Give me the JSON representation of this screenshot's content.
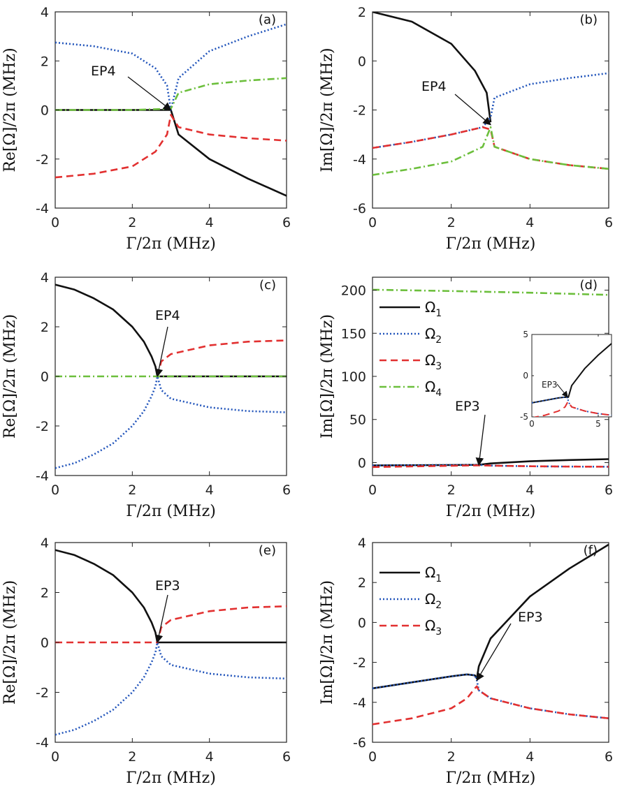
{
  "figure": {
    "xlabel": "Γ/2π (MHz)",
    "ylabel_re": "Re[Ω]/2π (MHz)",
    "ylabel_im": "Im[Ω]/2π (MHz)",
    "legend_labels": [
      "Ω1",
      "Ω2",
      "Ω3",
      "Ω4"
    ]
  },
  "colors": {
    "omega1": "#111111",
    "omega2": "#2255bb",
    "omega3": "#e23030",
    "omega4": "#6cbf3c"
  },
  "chart_data": [
    {
      "panel": "(a)",
      "type": "line",
      "xlabel": "Γ/2π (MHz)",
      "ylabel": "Re[Ω]/2π (MHz)",
      "xlim": [
        0,
        6
      ],
      "ylim": [
        -4,
        4
      ],
      "xticks": [
        0,
        2,
        4,
        6
      ],
      "yticks": [
        4,
        2,
        0,
        -2,
        -4
      ],
      "annotation": {
        "text": "EP4",
        "x": 3.0,
        "y": 0
      },
      "series": [
        {
          "name": "Ω1",
          "style": "solid",
          "color": "#111111",
          "x": [
            0,
            1,
            2,
            2.8,
            3.0,
            3.2,
            4,
            5,
            6
          ],
          "y": [
            0,
            0,
            0,
            0,
            0,
            -1.0,
            -2.0,
            -2.8,
            -3.5
          ]
        },
        {
          "name": "Ω2",
          "style": "dotted",
          "color": "#2255bb",
          "x": [
            0,
            1,
            2,
            2.6,
            2.9,
            3.0,
            3.2,
            4,
            5,
            6
          ],
          "y": [
            2.75,
            2.6,
            2.3,
            1.7,
            1.0,
            0,
            1.3,
            2.4,
            3.0,
            3.5
          ]
        },
        {
          "name": "Ω3",
          "style": "dashed",
          "color": "#e23030",
          "x": [
            0,
            1,
            2,
            2.6,
            2.9,
            3.0,
            3.2,
            4,
            5,
            6
          ],
          "y": [
            -2.75,
            -2.6,
            -2.3,
            -1.7,
            -1.0,
            -0.2,
            -0.7,
            -1.0,
            -1.15,
            -1.25
          ]
        },
        {
          "name": "Ω4",
          "style": "dashdot",
          "color": "#6cbf3c",
          "x": [
            0,
            1,
            2,
            3.0,
            3.2,
            4,
            5,
            6
          ],
          "y": [
            0,
            0,
            0,
            0.05,
            0.7,
            1.05,
            1.2,
            1.3
          ]
        }
      ]
    },
    {
      "panel": "(b)",
      "type": "line",
      "xlabel": "Γ/2π (MHz)",
      "ylabel": "Im[Ω]/2π (MHz)",
      "xlim": [
        0,
        6
      ],
      "ylim": [
        -6,
        2
      ],
      "xticks": [
        0,
        2,
        4,
        6
      ],
      "yticks": [
        2,
        0,
        -2,
        -4,
        -6
      ],
      "annotation": {
        "text": "EP4",
        "x": 3.0,
        "y": -2.6
      },
      "series": [
        {
          "name": "Ω1",
          "style": "solid",
          "color": "#111111",
          "x": [
            0,
            1,
            2,
            2.6,
            2.9,
            3.0
          ],
          "y": [
            2.0,
            1.6,
            0.7,
            -0.4,
            -1.3,
            -2.5
          ]
        },
        {
          "name": "Ω2",
          "style": "dotted",
          "color": "#2255bb",
          "x": [
            0,
            1,
            2,
            2.8,
            3.0,
            3.1,
            4,
            5,
            6
          ],
          "y": [
            -3.55,
            -3.3,
            -3.0,
            -2.7,
            -2.3,
            -1.5,
            -0.95,
            -0.7,
            -0.5
          ]
        },
        {
          "name": "Ω3",
          "style": "dashed",
          "color": "#e23030",
          "x": [
            0,
            1,
            2,
            2.8,
            3.0,
            3.1,
            4,
            5,
            6
          ],
          "y": [
            -3.55,
            -3.3,
            -3.0,
            -2.7,
            -2.8,
            -3.5,
            -4.0,
            -4.25,
            -4.4
          ]
        },
        {
          "name": "Ω4",
          "style": "dashdot",
          "color": "#6cbf3c",
          "x": [
            0,
            1,
            2,
            2.8,
            3.0,
            3.1,
            4,
            5,
            6
          ],
          "y": [
            -4.65,
            -4.4,
            -4.1,
            -3.5,
            -2.7,
            -3.5,
            -4.0,
            -4.25,
            -4.4
          ]
        }
      ]
    },
    {
      "panel": "(c)",
      "type": "line",
      "xlabel": "Γ/2π (MHz)",
      "ylabel": "Re[Ω]/2π (MHz)",
      "xlim": [
        0,
        6
      ],
      "ylim": [
        -4,
        4
      ],
      "xticks": [
        0,
        2,
        4,
        6
      ],
      "yticks": [
        4,
        2,
        0,
        -2,
        -4
      ],
      "annotation": {
        "text": "EP4",
        "x": 2.65,
        "y": 0
      },
      "series": [
        {
          "name": "Ω1",
          "style": "solid",
          "color": "#111111",
          "x": [
            0,
            0.5,
            1,
            1.5,
            2,
            2.3,
            2.5,
            2.6,
            2.65,
            3,
            4,
            5,
            6
          ],
          "y": [
            3.7,
            3.5,
            3.15,
            2.7,
            2.0,
            1.4,
            0.8,
            0.4,
            0,
            0,
            0,
            0,
            0
          ]
        },
        {
          "name": "Ω2",
          "style": "dotted",
          "color": "#2255bb",
          "x": [
            0,
            0.5,
            1,
            1.5,
            2,
            2.3,
            2.5,
            2.6,
            2.65,
            2.75,
            3,
            4,
            5,
            6
          ],
          "y": [
            -3.7,
            -3.5,
            -3.15,
            -2.7,
            -2.0,
            -1.4,
            -0.8,
            -0.4,
            0,
            -0.55,
            -0.9,
            -1.25,
            -1.4,
            -1.45
          ]
        },
        {
          "name": "Ω3",
          "style": "dashed",
          "color": "#e23030",
          "x": [
            2.65,
            2.75,
            3,
            4,
            5,
            6
          ],
          "y": [
            0,
            0.6,
            0.9,
            1.25,
            1.4,
            1.45
          ]
        },
        {
          "name": "Ω4",
          "style": "dashdot",
          "color": "#6cbf3c",
          "x": [
            0,
            6
          ],
          "y": [
            0,
            0
          ]
        }
      ]
    },
    {
      "panel": "(d)",
      "type": "line",
      "xlabel": "Γ/2π (MHz)",
      "ylabel": "Im[Ω]/2π (MHz)",
      "xlim": [
        0,
        6
      ],
      "ylim": [
        -15,
        215
      ],
      "xticks": [
        0,
        2,
        4,
        6
      ],
      "yticks": [
        200,
        150,
        100,
        50,
        0
      ],
      "legend": [
        "Ω1",
        "Ω2",
        "Ω3",
        "Ω4"
      ],
      "annotation": {
        "text": "EP3",
        "x": 2.7,
        "y": -3
      },
      "series": [
        {
          "name": "Ω1",
          "style": "solid",
          "color": "#111111",
          "x": [
            0,
            2.7,
            3,
            4,
            5,
            6
          ],
          "y": [
            -3.3,
            -2.6,
            -1,
            1.5,
            3,
            4
          ]
        },
        {
          "name": "Ω2",
          "style": "dotted",
          "color": "#2255bb",
          "x": [
            0,
            2.7,
            3,
            4,
            5,
            6
          ],
          "y": [
            -3.3,
            -2.6,
            -3.5,
            -4.2,
            -4.6,
            -4.8
          ]
        },
        {
          "name": "Ω3",
          "style": "dashed",
          "color": "#e23030",
          "x": [
            0,
            2.7,
            3,
            4,
            5,
            6
          ],
          "y": [
            -5.1,
            -3.2,
            -3.5,
            -4.2,
            -4.6,
            -4.8
          ]
        },
        {
          "name": "Ω4",
          "style": "dashdot",
          "color": "#6cbf3c",
          "x": [
            0,
            2,
            4,
            6
          ],
          "y": [
            200.5,
            199,
            197,
            194.5
          ]
        }
      ],
      "inset": {
        "xlim": [
          0,
          6
        ],
        "ylim": [
          -5,
          5
        ],
        "xticks": [
          0,
          5
        ],
        "yticks": [
          5,
          0,
          -5
        ],
        "annotation": {
          "text": "EP3",
          "x": 2.7,
          "y": -2.6
        },
        "series": [
          {
            "name": "Ω1",
            "style": "solid",
            "color": "#111111",
            "x": [
              0,
              1,
              2,
              2.5,
              2.7,
              2.75,
              3,
              4,
              5,
              6
            ],
            "y": [
              -3.3,
              -3.0,
              -2.7,
              -2.6,
              -2.65,
              -2.6,
              -1.2,
              0.9,
              2.5,
              3.9
            ]
          },
          {
            "name": "Ω2",
            "style": "dotted",
            "color": "#2255bb",
            "x": [
              0,
              1,
              2,
              2.5,
              2.7,
              2.75,
              3,
              4,
              5,
              6
            ],
            "y": [
              -3.3,
              -3.0,
              -2.7,
              -2.6,
              -2.65,
              -3.2,
              -3.8,
              -4.3,
              -4.6,
              -4.8
            ]
          },
          {
            "name": "Ω3",
            "style": "dashed",
            "color": "#e23030",
            "x": [
              0,
              1,
              2,
              2.5,
              2.7,
              2.75,
              3,
              4,
              5,
              6
            ],
            "y": [
              -5.1,
              -4.8,
              -4.3,
              -3.8,
              -3.2,
              -3.2,
              -3.8,
              -4.3,
              -4.6,
              -4.8
            ]
          }
        ]
      }
    },
    {
      "panel": "(e)",
      "type": "line",
      "xlabel": "Γ/2π (MHz)",
      "ylabel": "Re[Ω]/2π (MHz)",
      "xlim": [
        0,
        6
      ],
      "ylim": [
        -4,
        4
      ],
      "xticks": [
        0,
        2,
        4,
        6
      ],
      "yticks": [
        4,
        2,
        0,
        -2,
        -4
      ],
      "annotation": {
        "text": "EP3",
        "x": 2.65,
        "y": 0
      },
      "series": [
        {
          "name": "Ω1",
          "style": "solid",
          "color": "#111111",
          "x": [
            0,
            0.5,
            1,
            1.5,
            2,
            2.3,
            2.5,
            2.6,
            2.65,
            3,
            4,
            5,
            6
          ],
          "y": [
            3.7,
            3.5,
            3.15,
            2.7,
            2.0,
            1.4,
            0.8,
            0.4,
            0,
            0,
            0,
            0,
            0
          ]
        },
        {
          "name": "Ω2",
          "style": "dotted",
          "color": "#2255bb",
          "x": [
            0,
            0.5,
            1,
            1.5,
            2,
            2.3,
            2.5,
            2.6,
            2.65,
            2.75,
            3,
            4,
            5,
            6
          ],
          "y": [
            -3.7,
            -3.5,
            -3.15,
            -2.7,
            -2.0,
            -1.4,
            -0.8,
            -0.4,
            0,
            -0.55,
            -0.9,
            -1.25,
            -1.4,
            -1.45
          ]
        },
        {
          "name": "Ω3",
          "style": "dashed",
          "color": "#e23030",
          "x": [
            0,
            2.65,
            2.75,
            3,
            4,
            5,
            6
          ],
          "y": [
            0,
            0,
            0.6,
            0.9,
            1.25,
            1.4,
            1.45
          ]
        }
      ]
    },
    {
      "panel": "(f)",
      "type": "line",
      "xlabel": "Γ/2π (MHz)",
      "ylabel": "Im[Ω]/2π (MHz)",
      "xlim": [
        0,
        6
      ],
      "ylim": [
        -6,
        4
      ],
      "xticks": [
        0,
        2,
        4,
        6
      ],
      "yticks": [
        4,
        2,
        0,
        -2,
        -4,
        -6
      ],
      "legend": [
        "Ω1",
        "Ω2",
        "Ω3"
      ],
      "annotation": {
        "text": "EP3",
        "x": 2.65,
        "y": -2.9
      },
      "series": [
        {
          "name": "Ω1",
          "style": "solid",
          "color": "#111111",
          "x": [
            0,
            1,
            2,
            2.4,
            2.6,
            2.65,
            2.7,
            3,
            4,
            5,
            6
          ],
          "y": [
            -3.3,
            -3.0,
            -2.7,
            -2.6,
            -2.65,
            -2.8,
            -2.2,
            -0.8,
            1.3,
            2.7,
            3.9
          ]
        },
        {
          "name": "Ω2",
          "style": "dotted",
          "color": "#2255bb",
          "x": [
            0,
            1,
            2,
            2.4,
            2.6,
            2.65,
            2.7,
            3,
            4,
            5,
            6
          ],
          "y": [
            -3.3,
            -3.0,
            -2.7,
            -2.6,
            -2.65,
            -2.9,
            -3.4,
            -3.8,
            -4.3,
            -4.6,
            -4.8
          ]
        },
        {
          "name": "Ω3",
          "style": "dashed",
          "color": "#e23030",
          "x": [
            0,
            1,
            2,
            2.4,
            2.6,
            2.65,
            2.7,
            3,
            4,
            5,
            6
          ],
          "y": [
            -5.1,
            -4.8,
            -4.3,
            -3.8,
            -3.3,
            -3.2,
            -3.4,
            -3.8,
            -4.3,
            -4.6,
            -4.8
          ]
        }
      ]
    }
  ]
}
